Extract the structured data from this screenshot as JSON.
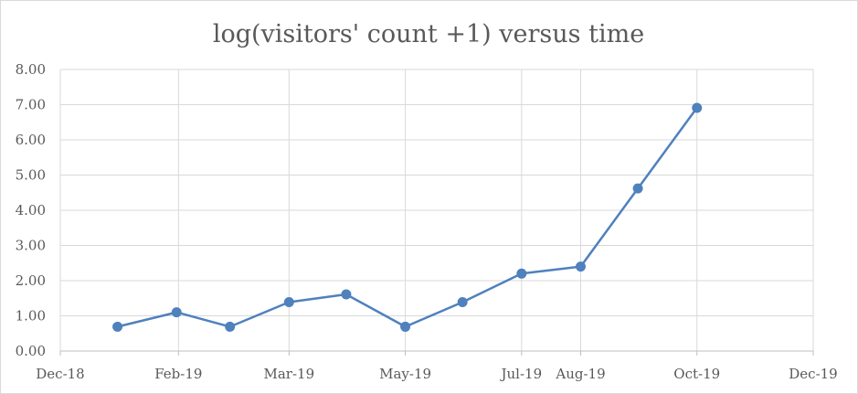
{
  "chart_data": {
    "type": "line",
    "title": "log(visitors' count +1) versus time",
    "xlabel": "",
    "ylabel": "",
    "x_ticks": [
      "Dec-18",
      "Feb-19",
      "Mar-19",
      "May-19",
      "Jul-19",
      "Aug-19",
      "Oct-19",
      "Dec-19"
    ],
    "x_tick_dates": [
      "2018-12-01",
      "2019-02-01",
      "2019-03-31",
      "2019-05-31",
      "2019-07-31",
      "2019-08-31",
      "2019-10-31",
      "2019-12-31"
    ],
    "xlim": [
      "2018-12-01",
      "2019-12-31"
    ],
    "y_ticks": [
      "0.00",
      "1.00",
      "2.00",
      "3.00",
      "4.00",
      "5.00",
      "6.00",
      "7.00",
      "8.00"
    ],
    "ylim": [
      0,
      8
    ],
    "grid": true,
    "series": [
      {
        "color": "#4f81bd",
        "marker": "circle",
        "points": [
          {
            "x": "2018-12-31",
            "y": 0.69
          },
          {
            "x": "2019-01-31",
            "y": 1.1
          },
          {
            "x": "2019-02-28",
            "y": 0.69
          },
          {
            "x": "2019-03-31",
            "y": 1.39
          },
          {
            "x": "2019-04-30",
            "y": 1.61
          },
          {
            "x": "2019-05-31",
            "y": 0.69
          },
          {
            "x": "2019-06-30",
            "y": 1.39
          },
          {
            "x": "2019-07-31",
            "y": 2.2
          },
          {
            "x": "2019-08-31",
            "y": 2.4
          },
          {
            "x": "2019-09-30",
            "y": 4.62
          },
          {
            "x": "2019-10-31",
            "y": 6.91
          }
        ]
      }
    ]
  }
}
